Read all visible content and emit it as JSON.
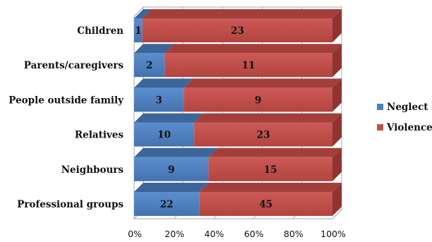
{
  "chart_data": {
    "type": "bar",
    "orientation": "horizontal",
    "stacked": "percent",
    "three_d": true,
    "categories": [
      "Children",
      "Parents/caregivers",
      "People outside  family",
      "Relatives",
      "Neighbours",
      "Professional groups"
    ],
    "series": [
      {
        "name": "Neglect",
        "values": [
          1,
          2,
          3,
          10,
          9,
          22
        ],
        "color": "#4f81bd"
      },
      {
        "name": "Violence",
        "values": [
          23,
          11,
          9,
          23,
          15,
          45
        ],
        "color": "#c0504d"
      }
    ],
    "xlim": [
      0,
      100
    ],
    "x_ticks": [
      "0%",
      "20%",
      "40%",
      "60%",
      "80%",
      "100%"
    ],
    "grid": true,
    "legend_position": "right"
  }
}
